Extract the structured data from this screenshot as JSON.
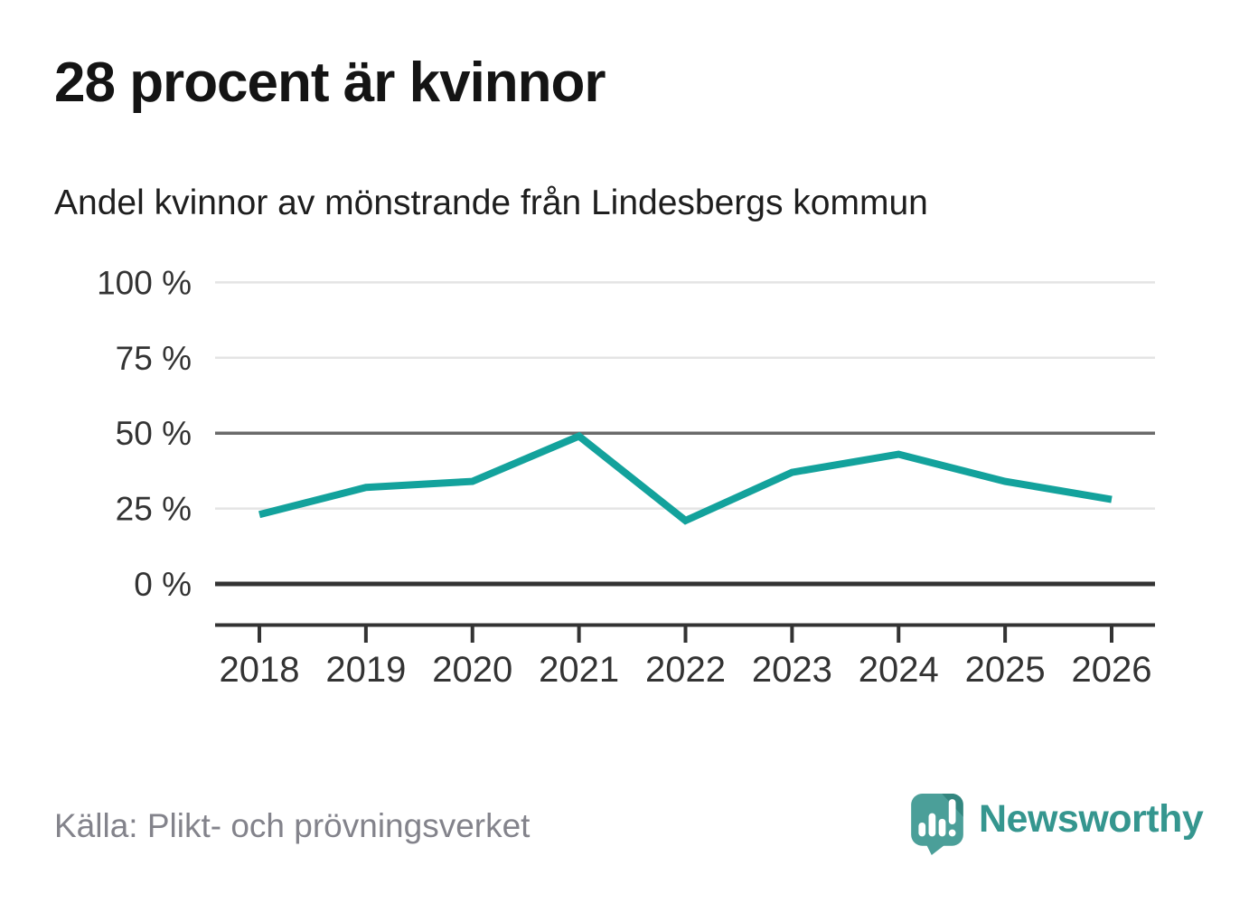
{
  "header": {
    "title": "28 procent är kvinnor",
    "subtitle": "Andel kvinnor av mönstrande från Lindesbergs kommun"
  },
  "chart_data": {
    "type": "line",
    "title": "28 procent är kvinnor",
    "subtitle": "Andel kvinnor av mönstrande från Lindesbergs kommun",
    "categories": [
      "2018",
      "2019",
      "2020",
      "2021",
      "2022",
      "2023",
      "2024",
      "2025",
      "2026"
    ],
    "values": [
      23,
      32,
      34,
      49,
      21,
      37,
      43,
      34,
      28
    ],
    "series_name": "Andel kvinnor av mönstrande (%)",
    "unit": "%",
    "ylim": [
      0,
      100
    ],
    "yticks": [
      {
        "value": 100,
        "label": "100 %"
      },
      {
        "value": 75,
        "label": "75 %"
      },
      {
        "value": 50,
        "label": "50 %"
      },
      {
        "value": 25,
        "label": "25 %"
      },
      {
        "value": 0,
        "label": "0 %"
      }
    ],
    "grid": true,
    "legend": "none",
    "line_color": "#13a29c",
    "grid_color_light": "#e4e4e4",
    "grid_color_medium": "#6a6a6a",
    "axis_color": "#333333",
    "tick_label_color": "#333333"
  },
  "footer": {
    "source": "Källa: Plikt- och prövningsverket",
    "brand": "Newsworthy",
    "brand_color": "#35968f",
    "logo_icon": "newsworthy-speech-bubble-bar-chart-icon",
    "logo_icon_color": "#4b9f99",
    "logo_icon_fold_color": "#33867f"
  }
}
